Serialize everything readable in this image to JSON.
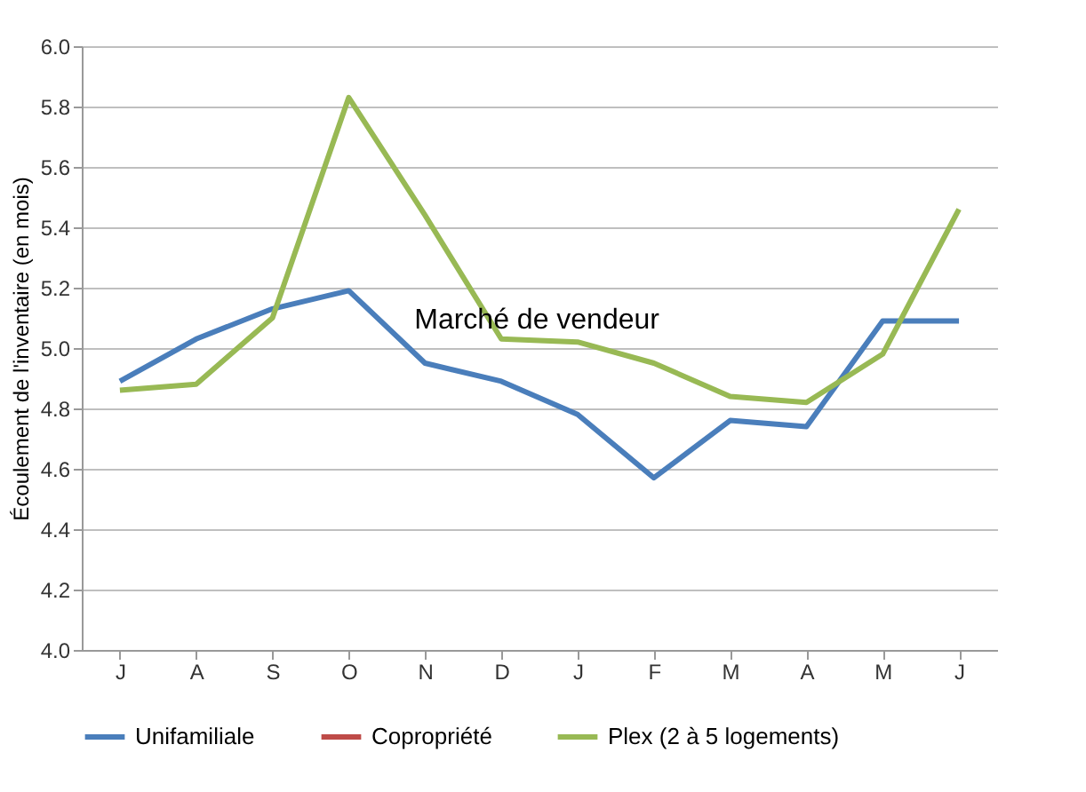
{
  "chart_data": {
    "type": "line",
    "ylabel": "Écoulement de l'inventaire (en mois)",
    "categories": [
      "J",
      "A",
      "S",
      "O",
      "N",
      "D",
      "J",
      "F",
      "M",
      "A",
      "M",
      "J"
    ],
    "series": [
      {
        "name": "Unifamiliale",
        "color": "#4a7ebb",
        "values": [
          4.89,
          5.03,
          5.13,
          5.19,
          4.95,
          4.89,
          4.78,
          4.57,
          4.76,
          4.74,
          5.09,
          5.09
        ]
      },
      {
        "name": "Copropriété",
        "color": "#be4b48",
        "values": [
          null,
          null,
          null,
          null,
          null,
          null,
          null,
          null,
          null,
          null,
          null,
          null
        ]
      },
      {
        "name": "Plex (2 à 5 logements)",
        "color": "#98b954",
        "values": [
          4.86,
          4.88,
          5.1,
          5.83,
          5.44,
          5.03,
          5.02,
          4.95,
          4.84,
          4.82,
          4.98,
          5.46
        ]
      }
    ],
    "ylim": [
      4.0,
      6.0
    ],
    "yticks": [
      {
        "value": 4.0,
        "label": "4.0"
      },
      {
        "value": 4.2,
        "label": "4.2"
      },
      {
        "value": 4.4,
        "label": "4.4"
      },
      {
        "value": 4.6,
        "label": "4.6"
      },
      {
        "value": 4.8,
        "label": "4.8"
      },
      {
        "value": 5.0,
        "label": "5.0"
      },
      {
        "value": 5.2,
        "label": "5.2"
      },
      {
        "value": 5.4,
        "label": "5.4"
      },
      {
        "value": 5.6,
        "label": "5.6"
      },
      {
        "value": 5.8,
        "label": "5.8"
      },
      {
        "value": 6.0,
        "label": "6.0"
      }
    ],
    "annotations": [
      {
        "text": "Marché de vendeur",
        "x": "D",
        "y": 5.0
      }
    ],
    "grid": "y",
    "legend": "bottom",
    "marker": "none",
    "line_style": "solid"
  }
}
